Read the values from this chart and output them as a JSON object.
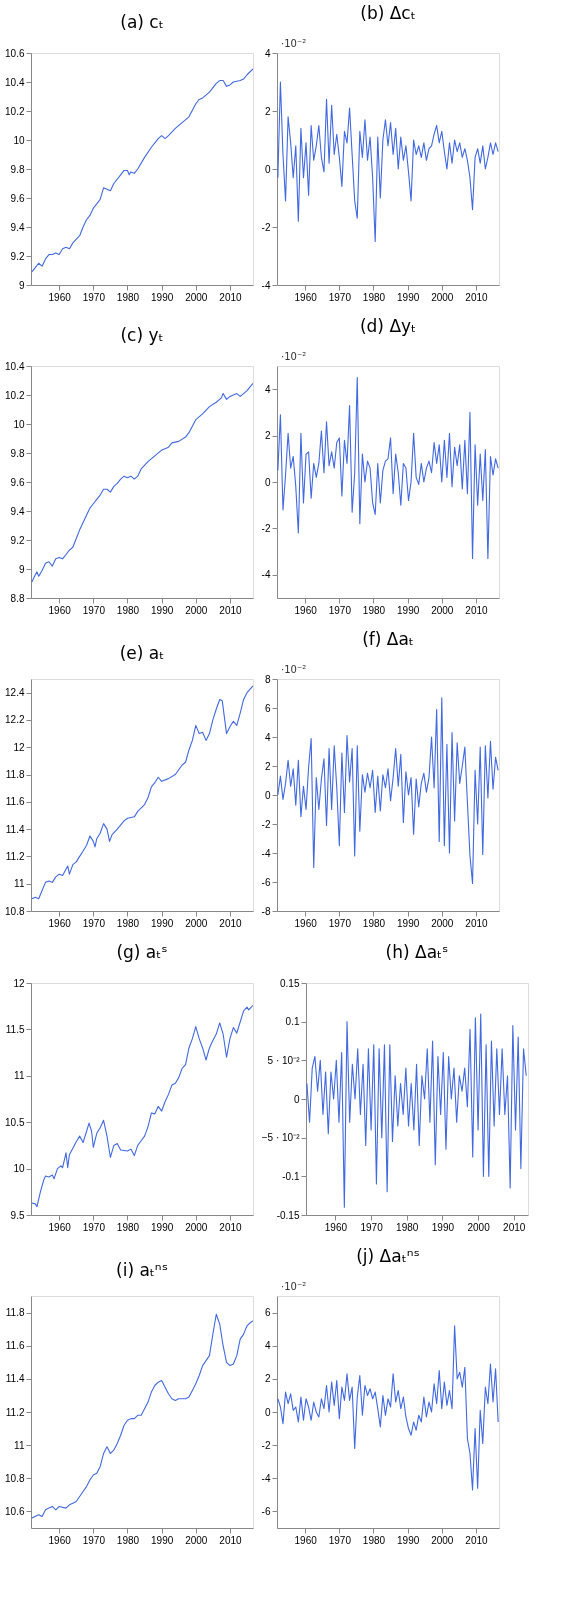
{
  "chart_data": [
    {
      "type": "line",
      "title": "(a) cₜ",
      "xlim": [
        1951.75,
        2016.75
      ],
      "xticks": [
        1960,
        1970,
        1980,
        1990,
        2000,
        2010
      ],
      "ylim": [
        9,
        10.6
      ],
      "yticks": [
        9,
        9.2,
        9.4,
        9.6,
        9.8,
        10,
        10.2,
        10.4,
        10.6
      ],
      "series": [
        {
          "color": "#4169e1",
          "x": [
            1952,
            1953,
            1954,
            1955,
            1956,
            1957,
            1958,
            1959,
            1960,
            1961,
            1962,
            1963,
            1964,
            1966,
            1967,
            1968,
            1969,
            1970,
            1971,
            1972,
            1973,
            1974,
            1975,
            1976,
            1978,
            1979,
            1980,
            1980.5,
            1981,
            1982,
            1983,
            1985,
            1987,
            1989,
            1990,
            1991,
            1992,
            1994,
            1996,
            1998,
            2000,
            2001,
            2002,
            2004,
            2006,
            2007,
            2008,
            2009,
            2010,
            2011,
            2013,
            2014,
            2015,
            2016.75
          ],
          "values": [
            9.09,
            9.12,
            9.15,
            9.13,
            9.18,
            9.21,
            9.21,
            9.22,
            9.21,
            9.25,
            9.26,
            9.25,
            9.29,
            9.34,
            9.4,
            9.45,
            9.48,
            9.53,
            9.56,
            9.59,
            9.67,
            9.66,
            9.65,
            9.7,
            9.76,
            9.79,
            9.79,
            9.76,
            9.78,
            9.77,
            9.8,
            9.88,
            9.95,
            10.01,
            10.03,
            10.01,
            10.03,
            10.08,
            10.12,
            10.16,
            10.25,
            10.28,
            10.29,
            10.33,
            10.39,
            10.41,
            10.41,
            10.37,
            10.38,
            10.4,
            10.41,
            10.42,
            10.45,
            10.49
          ]
        }
      ]
    },
    {
      "type": "line",
      "title": "(b) Δcₜ",
      "annotations": [
        "·10⁻²"
      ],
      "xlim": [
        1951.75,
        2016.75
      ],
      "xticks": [
        1960,
        1970,
        1980,
        1990,
        2000,
        2010
      ],
      "ylim": [
        -4,
        4
      ],
      "yticks": [
        -4,
        -2,
        0,
        2,
        4
      ],
      "series": [
        {
          "color": "#4169e1",
          "x": [
            1952,
            1952.75,
            1953.5,
            1954.25,
            1955,
            1955.75,
            1956.5,
            1957.25,
            1958,
            1958.75,
            1959.5,
            1960.25,
            1961,
            1961.75,
            1962.5,
            1963.25,
            1964,
            1964.75,
            1965.5,
            1966.25,
            1967,
            1967.75,
            1968.5,
            1969.25,
            1970,
            1970.75,
            1971.5,
            1972.25,
            1973,
            1973.75,
            1974.5,
            1975.25,
            1976,
            1976.75,
            1977.5,
            1978.25,
            1979,
            1979.75,
            1980.5,
            1981.25,
            1982,
            1982.75,
            1983.5,
            1984.25,
            1985,
            1985.75,
            1986.5,
            1987.25,
            1988,
            1988.75,
            1989.5,
            1990.25,
            1991,
            1991.75,
            1992.5,
            1993.25,
            1994,
            1994.75,
            1995.5,
            1996.25,
            1997,
            1997.75,
            1998.5,
            1999.25,
            2000,
            2000.75,
            2001.5,
            2002.25,
            2003,
            2003.75,
            2004.5,
            2005.25,
            2006,
            2006.75,
            2007.5,
            2008.25,
            2009,
            2009.75,
            2010.5,
            2011.25,
            2012,
            2012.75,
            2013.5,
            2014.25,
            2015,
            2015.75,
            2016.5
          ],
          "values": [
            -0.3,
            3.0,
            0.5,
            -1.1,
            1.8,
            0.9,
            -0.3,
            0.8,
            -1.8,
            1.4,
            -0.3,
            0.9,
            -0.9,
            1.5,
            0.3,
            0.8,
            1.5,
            0.4,
            -0.1,
            2.4,
            0.2,
            2.2,
            0.5,
            1.2,
            0.4,
            -0.6,
            1.3,
            0.9,
            2.1,
            0.5,
            -1.1,
            -1.7,
            1.3,
            0.4,
            1.7,
            0.3,
            1.1,
            -0.3,
            -2.5,
            1.1,
            -1.0,
            1.0,
            1.7,
            0.8,
            1.6,
            0.5,
            1.4,
            0.0,
            1.1,
            0.3,
            0.8,
            -0.1,
            -1.1,
            1.0,
            0.5,
            0.8,
            0.4,
            0.9,
            0.3,
            0.7,
            0.8,
            1.2,
            1.5,
            0.9,
            1.3,
            0.6,
            0.0,
            0.9,
            0.2,
            1.0,
            0.6,
            0.9,
            0.4,
            0.7,
            0.3,
            -0.3,
            -1.4,
            0.4,
            0.7,
            0.2,
            0.8,
            0.0,
            0.4,
            0.9,
            0.5,
            0.9,
            0.6
          ]
        }
      ]
    },
    {
      "type": "line",
      "title": "(c) yₜ",
      "xlim": [
        1951.75,
        2016.75
      ],
      "xticks": [
        1960,
        1970,
        1980,
        1990,
        2000,
        2010
      ],
      "ylim": [
        8.8,
        10.4
      ],
      "yticks": [
        8.8,
        9,
        9.2,
        9.4,
        9.6,
        9.8,
        10,
        10.2,
        10.4
      ],
      "series": [
        {
          "color": "#4169e1",
          "x": [
            1952,
            1953,
            1953.5,
            1954,
            1955,
            1956,
            1957,
            1958,
            1959,
            1960,
            1961,
            1962,
            1963,
            1964,
            1965,
            1966,
            1967,
            1968,
            1969,
            1970,
            1971,
            1972,
            1973,
            1974,
            1975,
            1976,
            1977,
            1978,
            1979,
            1980,
            1981,
            1982,
            1983,
            1984,
            1986,
            1988,
            1990,
            1991,
            1992,
            1993,
            1995,
            1997,
            1998,
            2000,
            2002,
            2004,
            2006,
            2007.5,
            2008,
            2009,
            2010,
            2012,
            2013,
            2014,
            2015,
            2016.75
          ],
          "values": [
            8.91,
            8.96,
            8.98,
            8.95,
            8.99,
            9.04,
            9.05,
            9.02,
            9.07,
            9.08,
            9.07,
            9.1,
            9.13,
            9.15,
            9.21,
            9.27,
            9.32,
            9.37,
            9.42,
            9.45,
            9.48,
            9.51,
            9.55,
            9.55,
            9.53,
            9.57,
            9.59,
            9.62,
            9.64,
            9.63,
            9.64,
            9.62,
            9.64,
            9.69,
            9.74,
            9.78,
            9.82,
            9.83,
            9.84,
            9.87,
            9.88,
            9.91,
            9.94,
            10.03,
            10.07,
            10.12,
            10.15,
            10.18,
            10.21,
            10.17,
            10.19,
            10.21,
            10.19,
            10.21,
            10.23,
            10.28
          ]
        }
      ]
    },
    {
      "type": "line",
      "title": "(d) Δyₜ",
      "annotations": [
        "·10⁻²"
      ],
      "xlim": [
        1951.75,
        2016.75
      ],
      "xticks": [
        1960,
        1970,
        1980,
        1990,
        2000,
        2010
      ],
      "ylim": [
        -5,
        5
      ],
      "yticks": [
        -4,
        -2,
        0,
        2,
        4
      ],
      "series": [
        {
          "color": "#4169e1",
          "x": [
            1952,
            1952.75,
            1953.5,
            1954.25,
            1955,
            1955.75,
            1956.5,
            1957.25,
            1958,
            1958.75,
            1959.5,
            1960.25,
            1961,
            1961.75,
            1962.5,
            1963.25,
            1964,
            1964.75,
            1965.5,
            1966.25,
            1967,
            1967.75,
            1968.5,
            1969.25,
            1970,
            1970.75,
            1971.5,
            1972.25,
            1973,
            1973.75,
            1974.5,
            1975.25,
            1976,
            1976.75,
            1977.5,
            1978.25,
            1979,
            1979.75,
            1980.5,
            1981.25,
            1982,
            1982.75,
            1983.5,
            1984.25,
            1985,
            1985.75,
            1986.5,
            1987.25,
            1988,
            1988.75,
            1989.5,
            1990.25,
            1991,
            1991.75,
            1992.5,
            1993.25,
            1994,
            1994.75,
            1995.5,
            1996.25,
            1997,
            1997.75,
            1998.5,
            1999.25,
            2000,
            2000.75,
            2001.5,
            2002.25,
            2003,
            2003.75,
            2004.5,
            2005.25,
            2006,
            2006.75,
            2007.5,
            2008.25,
            2009,
            2009.75,
            2010.5,
            2011.25,
            2012,
            2012.75,
            2013.5,
            2014.25,
            2015,
            2015.75,
            2016.5
          ],
          "values": [
            0.5,
            2.9,
            -1.2,
            0.3,
            2.1,
            0.6,
            1.1,
            -0.2,
            -2.2,
            2.1,
            -0.9,
            1.2,
            1.3,
            -0.7,
            0.8,
            0.2,
            0.8,
            2.2,
            0.4,
            2.6,
            0.7,
            1.3,
            0.6,
            1.7,
            1.9,
            -0.6,
            1.8,
            0.8,
            3.3,
            -1.3,
            0.4,
            4.5,
            -1.8,
            1.2,
            0.0,
            0.9,
            0.6,
            -0.9,
            -1.4,
            0.8,
            -0.9,
            0.5,
            0.9,
            1.0,
            1.9,
            -0.5,
            1.2,
            0.4,
            -1.0,
            0.8,
            0.6,
            -0.8,
            0.0,
            2.1,
            0.2,
            -0.1,
            0.8,
            0.0,
            0.6,
            0.9,
            0.4,
            1.7,
            0.8,
            1.6,
            0.0,
            1.8,
            0.2,
            2.1,
            -0.2,
            1.5,
            0.7,
            1.6,
            -0.3,
            1.8,
            -0.5,
            3.0,
            -3.3,
            1.6,
            -1.0,
            1.2,
            -0.8,
            1.4,
            -3.3,
            1.1,
            0.3,
            1.0,
            0.6
          ]
        }
      ]
    },
    {
      "type": "line",
      "title": "(e) aₜ",
      "xlim": [
        1951.75,
        2016.75
      ],
      "xticks": [
        1960,
        1970,
        1980,
        1990,
        2000,
        2010
      ],
      "ylim": [
        10.8,
        12.5
      ],
      "yticks": [
        10.8,
        11,
        11.2,
        11.4,
        11.6,
        11.8,
        12,
        12.2,
        12.4
      ],
      "series": [
        {
          "color": "#4169e1",
          "x": [
            1952,
            1953,
            1954,
            1955,
            1956,
            1957,
            1958,
            1959,
            1960,
            1961,
            1962.5,
            1963,
            1964,
            1965,
            1966,
            1967,
            1968,
            1969,
            1970,
            1970.5,
            1971,
            1972,
            1973,
            1974,
            1974.75,
            1975.5,
            1977,
            1979,
            1980,
            1982,
            1983,
            1985,
            1986,
            1987,
            1988,
            1989,
            1990,
            1992,
            1994,
            1996,
            1997,
            1998,
            1999,
            2000,
            2001,
            2002,
            2003,
            2004,
            2005,
            2006,
            2007,
            2007.75,
            2009,
            2010,
            2011,
            2012,
            2013,
            2014,
            2015,
            2016.75
          ],
          "values": [
            10.89,
            10.9,
            10.89,
            10.95,
            11.01,
            11.02,
            11.01,
            11.05,
            11.07,
            11.06,
            11.13,
            11.07,
            11.14,
            11.16,
            11.2,
            11.24,
            11.28,
            11.35,
            11.31,
            11.27,
            11.33,
            11.37,
            11.44,
            11.4,
            11.31,
            11.36,
            11.4,
            11.46,
            11.48,
            11.49,
            11.53,
            11.58,
            11.63,
            11.71,
            11.74,
            11.78,
            11.75,
            11.77,
            11.8,
            11.87,
            11.89,
            11.98,
            12.05,
            12.16,
            12.1,
            12.11,
            12.05,
            12.1,
            12.2,
            12.28,
            12.35,
            12.34,
            12.1,
            12.15,
            12.19,
            12.16,
            12.25,
            12.35,
            12.4,
            12.45
          ]
        }
      ]
    },
    {
      "type": "line",
      "title": "(f) Δaₜ",
      "annotations": [
        "·10⁻²"
      ],
      "xlim": [
        1951.75,
        2016.75
      ],
      "xticks": [
        1960,
        1970,
        1980,
        1990,
        2000,
        2010
      ],
      "ylim": [
        -8,
        8
      ],
      "yticks": [
        -8,
        -6,
        -4,
        -2,
        0,
        2,
        4,
        6,
        8
      ],
      "series": [
        {
          "color": "#4169e1",
          "x": [
            1952,
            1952.75,
            1953.5,
            1954.25,
            1955,
            1955.75,
            1956.5,
            1957.25,
            1958,
            1958.75,
            1959.5,
            1960.25,
            1961,
            1961.75,
            1962.5,
            1963.25,
            1964,
            1964.75,
            1965.5,
            1966.25,
            1967,
            1967.75,
            1968.5,
            1969.25,
            1970,
            1970.75,
            1971.5,
            1972.25,
            1973,
            1973.75,
            1974.5,
            1975.25,
            1976,
            1976.75,
            1977.5,
            1978.25,
            1979,
            1979.75,
            1980.5,
            1981.25,
            1982,
            1982.75,
            1983.5,
            1984.25,
            1985,
            1985.75,
            1986.5,
            1987.25,
            1988,
            1988.75,
            1989.5,
            1990.25,
            1991,
            1991.75,
            1992.5,
            1993.25,
            1994,
            1994.75,
            1995.5,
            1996.25,
            1997,
            1997.75,
            1998.5,
            1999.25,
            2000,
            2000.75,
            2001.5,
            2002.25,
            2003,
            2003.75,
            2004.5,
            2005.25,
            2006,
            2006.75,
            2007.5,
            2008.25,
            2009,
            2009.75,
            2010.5,
            2011.25,
            2012,
            2012.75,
            2013.5,
            2014.25,
            2015,
            2015.75,
            2016.5
          ],
          "values": [
            0.0,
            1.3,
            -0.3,
            0.8,
            2.4,
            0.6,
            1.8,
            -0.7,
            2.4,
            -1.5,
            0.6,
            -1.0,
            1.9,
            3.9,
            -5.0,
            1.2,
            -1.0,
            1.1,
            2.5,
            -2.1,
            3.2,
            -1.0,
            3.4,
            0.5,
            -3.5,
            2.9,
            -1.2,
            4.1,
            0.9,
            3.2,
            -4.2,
            3.4,
            -2.5,
            1.4,
            0.2,
            1.5,
            0.5,
            1.7,
            -1.2,
            1.3,
            -1.1,
            1.4,
            0.5,
            1.8,
            -0.4,
            1.2,
            3.2,
            0.6,
            2.8,
            -1.9,
            1.6,
            0.0,
            1.2,
            -2.7,
            1.1,
            -0.8,
            0.8,
            1.5,
            0.2,
            1.2,
            4.0,
            0.5,
            5.9,
            -3.2,
            6.7,
            -3.5,
            3.5,
            -4.0,
            4.3,
            -1.8,
            3.6,
            0.8,
            2.0,
            3.3,
            -0.5,
            -4.2,
            -6.1,
            1.7,
            -2.0,
            3.3,
            -4.1,
            3.4,
            -0.2,
            3.7,
            0.4,
            2.6,
            1.7
          ]
        }
      ]
    },
    {
      "type": "line",
      "title": "(g) aₜˢ",
      "xlim": [
        1951.75,
        2016.75
      ],
      "xticks": [
        1960,
        1970,
        1980,
        1990,
        2000,
        2010
      ],
      "ylim": [
        9.5,
        12
      ],
      "yticks": [
        9.5,
        10,
        10.5,
        11,
        11.5,
        12
      ],
      "series": [
        {
          "color": "#4169e1",
          "x": [
            1952,
            1953,
            1953.5,
            1954.5,
            1955.5,
            1956,
            1957,
            1958,
            1958.5,
            1959.5,
            1960.5,
            1961,
            1962,
            1962.5,
            1963,
            1964,
            1965,
            1966,
            1967,
            1968,
            1968.75,
            1969.5,
            1970,
            1971,
            1972,
            1973,
            1974,
            1975,
            1976,
            1977,
            1978,
            1980,
            1981,
            1982,
            1983,
            1984,
            1985,
            1986,
            1987,
            1988,
            1989,
            1990,
            1991,
            1992,
            1993,
            1994,
            1995,
            1996,
            1997,
            1998,
            1999,
            2000,
            2001,
            2002,
            2003,
            2004,
            2005,
            2006,
            2007,
            2008,
            2009,
            2010,
            2011,
            2012,
            2013,
            2014,
            2015,
            2015.5,
            2016.75
          ],
          "values": [
            9.63,
            9.62,
            9.59,
            9.75,
            9.88,
            9.92,
            9.91,
            9.93,
            9.89,
            10.0,
            10.03,
            10.01,
            10.17,
            10.01,
            10.15,
            10.22,
            10.29,
            10.35,
            10.28,
            10.4,
            10.49,
            10.4,
            10.23,
            10.38,
            10.44,
            10.52,
            10.35,
            10.12,
            10.25,
            10.27,
            10.2,
            10.19,
            10.21,
            10.14,
            10.25,
            10.3,
            10.35,
            10.45,
            10.6,
            10.59,
            10.67,
            10.62,
            10.72,
            10.8,
            10.9,
            10.92,
            10.98,
            11.08,
            11.12,
            11.3,
            11.4,
            11.53,
            11.4,
            11.3,
            11.17,
            11.3,
            11.38,
            11.45,
            11.57,
            11.45,
            11.2,
            11.4,
            11.52,
            11.46,
            11.58,
            11.7,
            11.74,
            11.71,
            11.76
          ]
        }
      ]
    },
    {
      "type": "line",
      "title": "(h) Δaₜˢ",
      "xlim": [
        1951.75,
        2014
      ],
      "xticks": [
        1960,
        1970,
        1980,
        1990,
        2000,
        2010
      ],
      "ylim": [
        -0.15,
        0.15
      ],
      "yticks": [
        -0.15,
        -0.1,
        {
          "value": -0.05,
          "label": "−5 · 10⁻²"
        },
        0,
        {
          "value": 0.05,
          "label": "5 · 10⁻²"
        },
        0.1,
        0.15
      ],
      "series": [
        {
          "color": "#4169e1",
          "x": [
            1952,
            1952.75,
            1953.5,
            1954.25,
            1955,
            1955.75,
            1956.5,
            1957.25,
            1958,
            1958.75,
            1959.5,
            1960.25,
            1961,
            1961.75,
            1962.5,
            1963.25,
            1964,
            1964.75,
            1965.5,
            1966.25,
            1967,
            1967.75,
            1968.5,
            1969.25,
            1970,
            1970.75,
            1971.5,
            1972.25,
            1973,
            1973.75,
            1974.5,
            1975.25,
            1976,
            1976.75,
            1977.5,
            1978.25,
            1979,
            1979.75,
            1980.5,
            1981.25,
            1982,
            1982.75,
            1983.5,
            1984.25,
            1985,
            1985.75,
            1986.5,
            1987.25,
            1988,
            1988.75,
            1989.5,
            1990.25,
            1991,
            1991.75,
            1992.5,
            1993.25,
            1994,
            1994.75,
            1995.5,
            1996.25,
            1997,
            1997.75,
            1998.5,
            1999.25,
            2000,
            2000.75,
            2001.5,
            2002.25,
            2003,
            2003.75,
            2004.5,
            2005.25,
            2006,
            2006.75,
            2007.5,
            2008.25,
            2009,
            2009.75,
            2010.5,
            2011.25,
            2012,
            2012.75,
            2013.5
          ],
          "values": [
            0.02,
            -0.03,
            0.04,
            0.055,
            0.01,
            0.05,
            -0.02,
            0.035,
            -0.045,
            0.035,
            0.0,
            0.05,
            -0.03,
            0.06,
            -0.14,
            0.1,
            -0.03,
            0.045,
            0.0,
            0.065,
            -0.02,
            0.045,
            -0.06,
            0.065,
            -0.04,
            0.07,
            -0.11,
            0.065,
            -0.05,
            0.07,
            -0.12,
            0.07,
            -0.055,
            0.03,
            -0.035,
            0.02,
            -0.02,
            0.04,
            -0.035,
            0.02,
            -0.04,
            0.045,
            -0.06,
            0.03,
            0.0,
            0.065,
            -0.03,
            0.075,
            -0.085,
            0.055,
            -0.02,
            0.06,
            -0.065,
            0.055,
            0.0,
            0.04,
            -0.03,
            0.03,
            0.01,
            0.04,
            -0.01,
            0.09,
            -0.075,
            0.105,
            -0.04,
            0.11,
            -0.1,
            0.07,
            -0.1,
            0.075,
            -0.035,
            0.065,
            -0.02,
            0.065,
            -0.02,
            0.03,
            -0.115,
            0.095,
            -0.04,
            0.08,
            -0.09,
            0.065,
            0.03
          ]
        }
      ]
    },
    {
      "type": "line",
      "title": "(i) aₜⁿˢ",
      "xlim": [
        1951.75,
        2016.75
      ],
      "xticks": [
        1960,
        1970,
        1980,
        1990,
        2000,
        2010
      ],
      "ylim": [
        10.5,
        11.9
      ],
      "yticks": [
        10.6,
        10.8,
        11,
        11.2,
        11.4,
        11.6,
        11.8
      ],
      "series": [
        {
          "color": "#4169e1",
          "x": [
            1952,
            1954,
            1955,
            1956,
            1957,
            1958,
            1959,
            1960,
            1962,
            1963,
            1964,
            1965,
            1966,
            1967,
            1968,
            1969,
            1970,
            1971,
            1972,
            1973,
            1974,
            1975,
            1976,
            1977,
            1978,
            1979,
            1980,
            1981,
            1982,
            1983,
            1984,
            1985,
            1986,
            1987,
            1988,
            1989,
            1990,
            1991,
            1992,
            1993,
            1994,
            1995,
            1997,
            1998,
            1999,
            2000,
            2001,
            2002,
            2003,
            2004,
            2005,
            2006,
            2007,
            2008,
            2009,
            2010,
            2011,
            2012,
            2013,
            2014,
            2015,
            2016,
            2016.75
          ],
          "values": [
            10.56,
            10.58,
            10.57,
            10.61,
            10.62,
            10.63,
            10.61,
            10.63,
            10.62,
            10.64,
            10.65,
            10.66,
            10.69,
            10.72,
            10.75,
            10.79,
            10.82,
            10.83,
            10.87,
            10.95,
            10.99,
            10.95,
            10.97,
            11.01,
            11.06,
            11.12,
            11.15,
            11.16,
            11.16,
            11.18,
            11.18,
            11.22,
            11.26,
            11.32,
            11.36,
            11.38,
            11.39,
            11.35,
            11.31,
            11.28,
            11.27,
            11.28,
            11.28,
            11.29,
            11.33,
            11.37,
            11.42,
            11.48,
            11.51,
            11.54,
            11.67,
            11.79,
            11.73,
            11.6,
            11.5,
            11.48,
            11.49,
            11.54,
            11.64,
            11.67,
            11.72,
            11.74,
            11.75
          ]
        }
      ]
    },
    {
      "type": "line",
      "title": "(j) Δaₜⁿˢ",
      "annotations": [
        "·10⁻²"
      ],
      "xlim": [
        1951.75,
        2016.75
      ],
      "xticks": [
        1960,
        1970,
        1980,
        1990,
        2000,
        2010
      ],
      "ylim": [
        -7,
        7
      ],
      "yticks": [
        -6,
        -4,
        -2,
        0,
        2,
        4,
        6
      ],
      "series": [
        {
          "color": "#4169e1",
          "x": [
            1952,
            1952.75,
            1953.5,
            1954.25,
            1955,
            1955.75,
            1956.5,
            1957.25,
            1958,
            1958.75,
            1959.5,
            1960.25,
            1961,
            1961.75,
            1962.5,
            1963.25,
            1964,
            1964.75,
            1965.5,
            1966.25,
            1967,
            1967.75,
            1968.5,
            1969.25,
            1970,
            1970.75,
            1971.5,
            1972.25,
            1973,
            1973.75,
            1974.5,
            1975.25,
            1976,
            1976.75,
            1977.5,
            1978.25,
            1979,
            1979.75,
            1980.5,
            1981.25,
            1982,
            1982.75,
            1983.5,
            1984.25,
            1985,
            1985.75,
            1986.5,
            1987.25,
            1988,
            1988.75,
            1989.5,
            1990.25,
            1991,
            1991.75,
            1992.5,
            1993.25,
            1994,
            1994.75,
            1995.5,
            1996.25,
            1997,
            1997.75,
            1998.5,
            1999.25,
            2000,
            2000.75,
            2001.5,
            2002.25,
            2003,
            2003.75,
            2004.5,
            2005.25,
            2006,
            2006.75,
            2007.5,
            2008.25,
            2009,
            2009.75,
            2010.5,
            2011.25,
            2012,
            2012.75,
            2013.5,
            2014.25,
            2015,
            2015.75,
            2016.5
          ],
          "values": [
            0.8,
            0.3,
            -0.7,
            1.2,
            0.5,
            1.1,
            0.1,
            0.3,
            -0.6,
            0.9,
            -0.5,
            0.8,
            0.3,
            -0.5,
            0.6,
            0.0,
            -0.3,
            0.8,
            0.2,
            1.6,
            0.0,
            1.8,
            0.4,
            1.9,
            -0.4,
            1.5,
            0.7,
            2.3,
            0.7,
            1.5,
            -2.2,
            0.9,
            2.2,
            -0.2,
            1.6,
            1.0,
            1.4,
            0.8,
            1.2,
            0.2,
            -0.9,
            1.0,
            -0.2,
            0.8,
            0.3,
            2.3,
            0.6,
            1.3,
            0.2,
            0.9,
            -0.3,
            -1.0,
            -1.4,
            -0.6,
            -1.1,
            -0.2,
            -0.6,
            0.9,
            -0.3,
            0.6,
            0.0,
            1.7,
            0.5,
            2.5,
            0.2,
            1.8,
            0.4,
            1.3,
            0.2,
            5.2,
            2.0,
            2.4,
            1.5,
            2.7,
            -1.6,
            -2.5,
            -4.7,
            -1.0,
            -4.6,
            0.1,
            -1.9,
            1.5,
            0.5,
            2.9,
            0.6,
            2.6,
            -0.6
          ]
        }
      ]
    }
  ]
}
